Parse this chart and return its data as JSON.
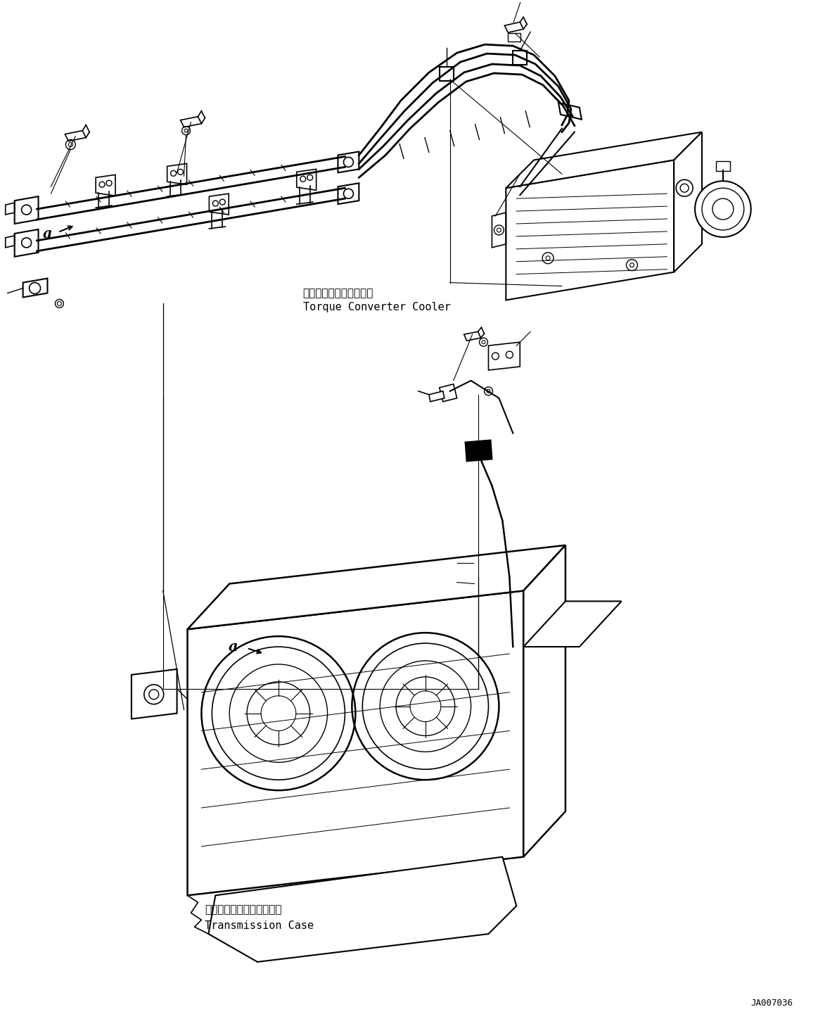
{
  "background_color": "#ffffff",
  "figure_width": 11.63,
  "figure_height": 14.58,
  "dpi": 100,
  "label_torque_ja": "トルクコンバータクーラ",
  "label_torque_en": "Torque Converter Cooler",
  "label_trans_ja": "トランスミッションケース",
  "label_trans_en": "Transmission Case",
  "ref_number": "JA007036",
  "label_a1": "a",
  "label_a2": "a",
  "line_color": "#000000",
  "font_size_label": 11,
  "font_size_ref": 9
}
